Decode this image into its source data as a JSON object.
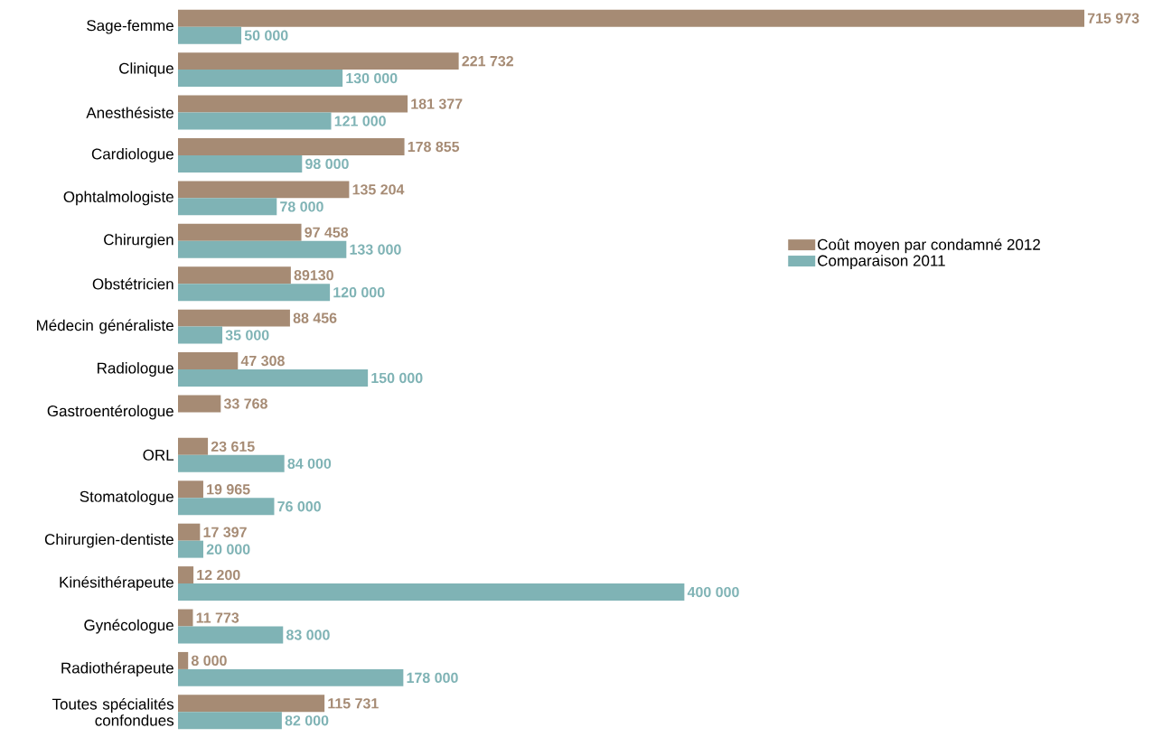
{
  "chart_data": {
    "type": "bar",
    "orientation": "horizontal",
    "legend": "right",
    "categories": [
      "Sage-femme",
      "Clinique",
      "Anesthésiste",
      "Cardiologue",
      "Ophtalmologiste",
      "Chirurgien",
      "Obstétricien",
      "Médecin généraliste",
      "Radiologue",
      "Gastroentérologue",
      "ORL",
      "Stomatologue",
      "Chirurgien-dentiste",
      "Kinésithérapeute",
      "Gynécologue",
      "Radiothérapeute",
      "Toutes spécialités confondues"
    ],
    "series": [
      {
        "name": "Coût moyen par condamné 2012",
        "color": "#a68b74",
        "values": [
          715973,
          221732,
          181377,
          178855,
          135204,
          97458,
          89130,
          88456,
          47308,
          33768,
          23615,
          19965,
          17397,
          12200,
          11773,
          8000,
          115731
        ],
        "value_labels": [
          "715 973",
          "221 732",
          "181 377",
          "178 855",
          "135 204",
          "97 458",
          "89130",
          "88 456",
          "47 308",
          "33 768",
          "23 615",
          "19 965",
          "17 397",
          "12 200",
          "11 773",
          "8 000",
          "115 731"
        ]
      },
      {
        "name": "Comparaison 2011",
        "color": "#7fb3b5",
        "values": [
          50000,
          130000,
          121000,
          98000,
          78000,
          133000,
          120000,
          35000,
          150000,
          null,
          84000,
          76000,
          20000,
          400000,
          83000,
          178000,
          82000
        ],
        "value_labels": [
          "50 000",
          "130 000",
          "121 000",
          "98 000",
          "78 000",
          "133 000",
          "120 000",
          "35 000",
          "150 000",
          null,
          "84 000",
          "76 000",
          "20 000",
          "400 000",
          "83 000",
          "178 000",
          "82 000"
        ]
      }
    ]
  }
}
